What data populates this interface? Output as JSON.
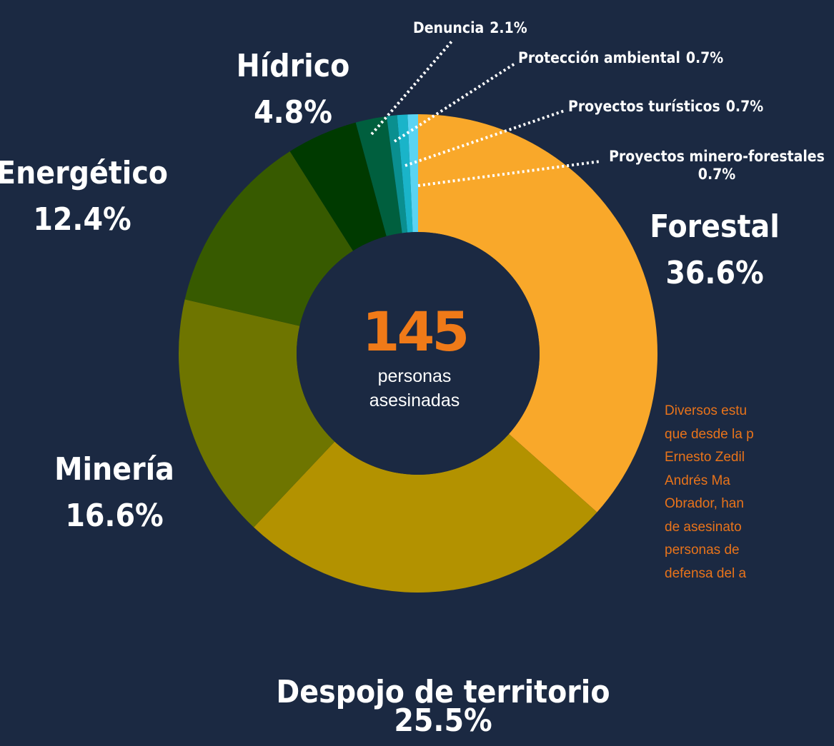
{
  "chart_data": {
    "type": "donut",
    "categories": [
      "Forestal",
      "Despojo de territorio",
      "Minería",
      "Energético",
      "Hídrico",
      "Denuncia",
      "Protección ambiental",
      "Proyectos turísticos",
      "Proyectos minero-forestales"
    ],
    "values": [
      36.6,
      25.5,
      16.6,
      12.4,
      4.8,
      2.1,
      0.7,
      0.7,
      0.7
    ],
    "value_labels": [
      "36.6%",
      "25.5%",
      "16.6%",
      "12.4%",
      "4.8%",
      "2.1%",
      "0.7%",
      "0.7%",
      "0.7%"
    ],
    "colors": [
      "#f9a82a",
      "#b39200",
      "#6e7500",
      "#375a00",
      "#003a00",
      "#005f3e",
      "#0a8f8f",
      "#1ab4c9",
      "#5ad4f2"
    ],
    "center_value": 145,
    "center_label": "personas asesinadas"
  },
  "side_text": [
    "Diversos estu",
    "que desde la p",
    "Ernesto Zedil",
    "Andrés Ma",
    "Obrador, han",
    "de asesinato",
    "personas de",
    "defensa del a"
  ]
}
